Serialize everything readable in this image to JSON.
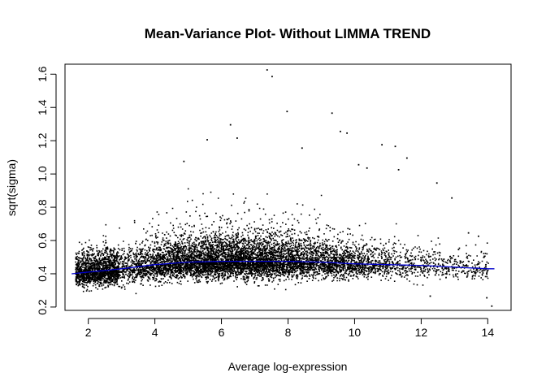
{
  "chart_data": {
    "type": "scatter",
    "title": "Mean-Variance Plot- Without LIMMA TREND",
    "xlabel": "Average log-expression",
    "ylabel": "sqrt(sigma)",
    "xlim": [
      1.3,
      14.7
    ],
    "ylim": [
      0.18,
      1.66
    ],
    "x_ticks": [
      2,
      4,
      6,
      8,
      10,
      12,
      14
    ],
    "y_ticks": [
      0.2,
      0.4,
      0.6,
      0.8,
      1.0,
      1.2,
      1.4,
      1.6
    ],
    "x_tick_labels": [
      "2",
      "4",
      "6",
      "8",
      "10",
      "12",
      "14"
    ],
    "y_tick_labels": [
      "0.2",
      "0.4",
      "0.6",
      "0.8",
      "1.0",
      "1.2",
      "1.4",
      "1.6"
    ],
    "grid": false,
    "point_color": "#000000",
    "trend_color": "#0000cc",
    "trend_line": {
      "x": [
        1.5,
        2,
        3,
        4,
        5,
        6,
        7,
        8,
        9,
        10,
        11,
        12,
        13,
        14,
        14.2
      ],
      "y": [
        0.4,
        0.41,
        0.43,
        0.455,
        0.47,
        0.475,
        0.475,
        0.475,
        0.47,
        0.46,
        0.455,
        0.45,
        0.44,
        0.43,
        0.43
      ]
    },
    "outliers": {
      "x": [
        7.35,
        7.5,
        6.25,
        6.45,
        7.95,
        9.3,
        9.55,
        9.75,
        10.8,
        11.2,
        11.55,
        8.4,
        5.55,
        10.1,
        10.35,
        11.3,
        12.45,
        12.9,
        13.4,
        13.7,
        13.95,
        14.1,
        13.1,
        12.25,
        4.85
      ],
      "y": [
        1.63,
        1.59,
        1.3,
        1.22,
        1.38,
        1.37,
        1.26,
        1.25,
        1.18,
        1.17,
        1.1,
        1.16,
        1.21,
        1.06,
        1.04,
        1.03,
        0.95,
        0.86,
        0.65,
        0.63,
        0.26,
        0.21,
        0.55,
        0.27,
        1.08
      ]
    },
    "cloud": {
      "point_count": 9000,
      "seed": 20240,
      "x_center": 6.4,
      "x_spread": 2.3,
      "x_range": [
        1.6,
        14.1
      ]
    }
  }
}
